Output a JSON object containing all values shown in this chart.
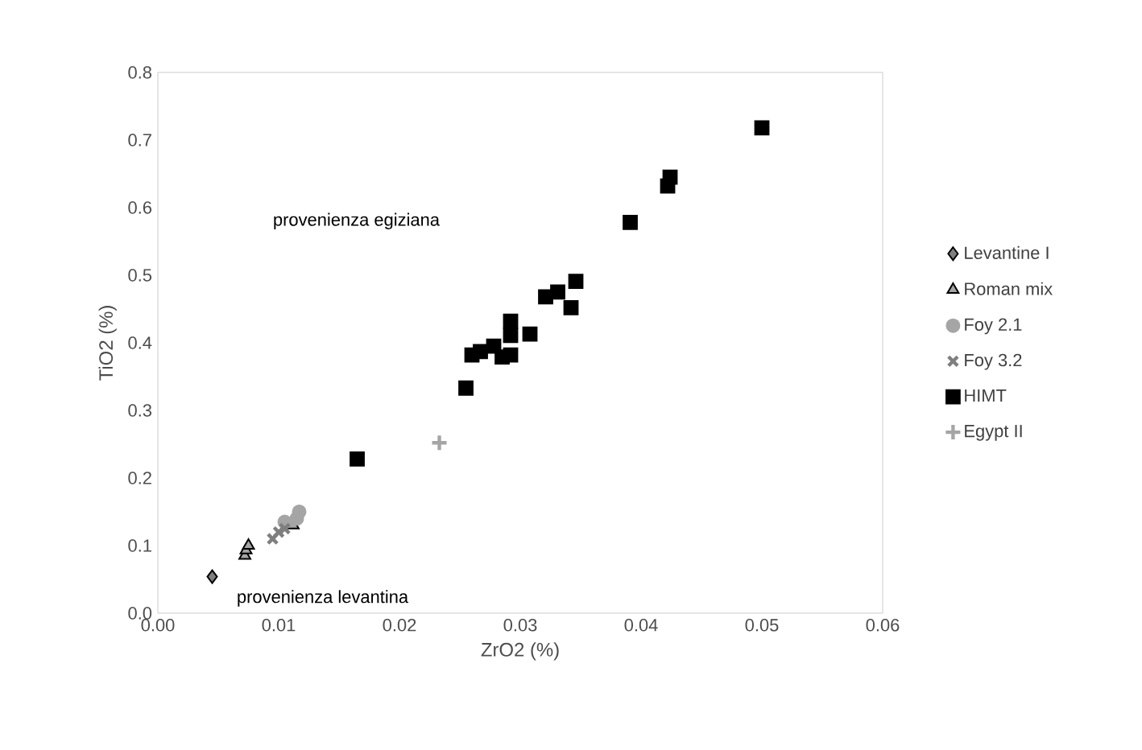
{
  "chart_data": {
    "type": "scatter",
    "xlabel": "ZrO2 (%)",
    "ylabel": "TiO2 (%)",
    "xlim": [
      0,
      0.06
    ],
    "ylim": [
      0,
      0.8
    ],
    "xticks": [
      {
        "value": 0,
        "label": "0.00"
      },
      {
        "value": 0.01,
        "label": "0.01"
      },
      {
        "value": 0.02,
        "label": "0.02"
      },
      {
        "value": 0.03,
        "label": "0.03"
      },
      {
        "value": 0.04,
        "label": "0.04"
      },
      {
        "value": 0.05,
        "label": "0.05"
      },
      {
        "value": 0.06,
        "label": "0.06"
      }
    ],
    "yticks": [
      {
        "value": 0,
        "label": "0.0"
      },
      {
        "value": 0.1,
        "label": "0.1"
      },
      {
        "value": 0.2,
        "label": "0.2"
      },
      {
        "value": 0.3,
        "label": "0.3"
      },
      {
        "value": 0.4,
        "label": "0.4"
      },
      {
        "value": 0.5,
        "label": "0.5"
      },
      {
        "value": 0.6,
        "label": "0.6"
      },
      {
        "value": 0.7,
        "label": "0.7"
      },
      {
        "value": 0.8,
        "label": "0.8"
      }
    ],
    "legend": "right",
    "grid": false,
    "annotations": [
      "provenienza egiziana",
      "provenienza levantina"
    ],
    "series": [
      {
        "name": "Levantine I",
        "color": "#7f7f7f",
        "marker": "diamond",
        "x": [
          0.0045
        ],
        "values": [
          0.054
        ]
      },
      {
        "name": "Roman mix",
        "color": "#a5a5a5",
        "marker": "triangle",
        "x": [
          0.0072,
          0.0073,
          0.0075,
          0.011,
          0.0112
        ],
        "values": [
          0.085,
          0.093,
          0.1,
          null,
          0.13
        ]
      },
      {
        "name": "Foy 2.1",
        "color": "#a5a5a5",
        "marker": "circle",
        "x": [
          0.0105,
          0.0112,
          0.0115,
          0.0117
        ],
        "values": [
          0.135,
          null,
          0.14,
          0.15
        ]
      },
      {
        "name": "Foy 3.2",
        "color": "#7f7f7f",
        "marker": "cross",
        "x": [
          0.0095,
          0.01,
          0.0105
        ],
        "values": [
          0.11,
          0.12,
          0.125
        ]
      },
      {
        "name": "HIMT",
        "color": "#000000",
        "marker": "square",
        "x": [
          0.0165,
          0.0255,
          0.026,
          0.0267,
          0.0278,
          0.0285,
          0.0292,
          0.0292,
          0.0292,
          0.0308,
          0.0321,
          0.0331,
          0.0342,
          0.0346,
          0.0391,
          0.0422,
          0.0424,
          0.05
        ],
        "values": [
          0.228,
          0.333,
          0.382,
          0.387,
          0.395,
          0.379,
          0.382,
          0.432,
          0.411,
          0.413,
          0.468,
          0.475,
          0.452,
          0.491,
          0.578,
          0.632,
          0.645,
          0.718
        ]
      },
      {
        "name": "Egypt II",
        "color": "#a5a5a5",
        "marker": "plus",
        "x": [
          0.0233
        ],
        "values": [
          0.252
        ]
      }
    ]
  }
}
